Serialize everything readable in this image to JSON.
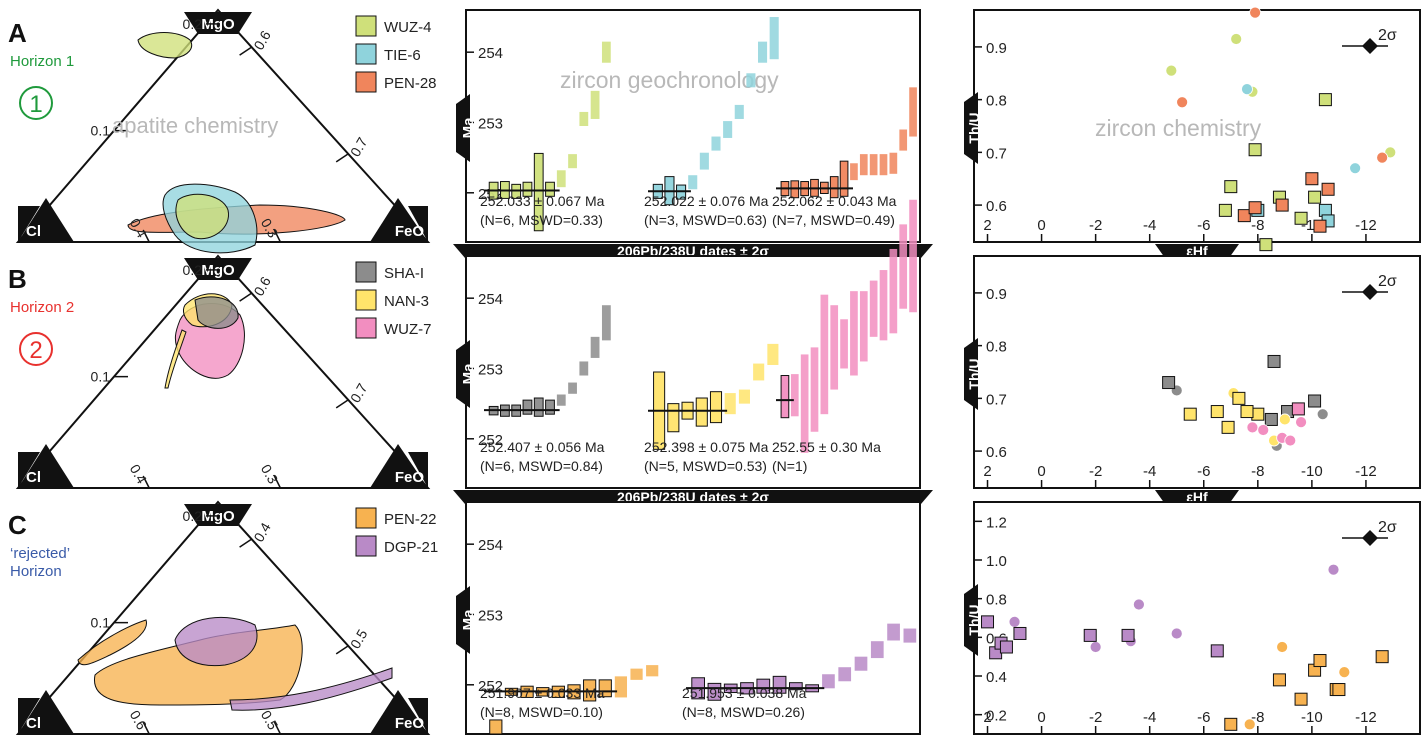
{
  "figure": {
    "rows": [
      {
        "letter": "A",
        "horizon_lines": [
          "Horizon 1"
        ],
        "horizon_color": "#1f9a3c",
        "circle_numeral": "1",
        "ternary": {
          "apex_labels": {
            "top": "MgO",
            "left": "Cl",
            "right": "FeO"
          },
          "left_edge_ticks": [
            "0.2",
            "0.1"
          ],
          "bottom_edge_ticks": [
            "0.4",
            "0.3"
          ],
          "right_edge_ticks": [
            "0.6",
            "0.7"
          ],
          "watermark": "apatite chemistry"
        },
        "legend": [
          {
            "label": "WUZ-4",
            "color": "#cfe07a"
          },
          {
            "label": "TIE-6",
            "color": "#8fd3dc"
          },
          {
            "label": "PEN-28",
            "color": "#f0855c"
          }
        ],
        "geochron_watermark": "zircon geochronology",
        "chem_watermark": "zircon chemistry",
        "geochron_xlabel": "206Pb/238U dates ± 2σ",
        "chem_xlabel": "εHf"
      },
      {
        "letter": "B",
        "horizon_lines": [
          "Horizon 2"
        ],
        "horizon_color": "#e8312e",
        "circle_numeral": "2",
        "ternary": {
          "apex_labels": {
            "top": "MgO",
            "left": "Cl",
            "right": "FeO"
          },
          "left_edge_ticks": [
            "0.2",
            "0.1"
          ],
          "bottom_edge_ticks": [
            "0.4",
            "0.3"
          ],
          "right_edge_ticks": [
            "0.6",
            "0.7"
          ],
          "watermark": ""
        },
        "legend": [
          {
            "label": "SHA-I",
            "color": "#8c8c8c"
          },
          {
            "label": "NAN-3",
            "color": "#ffe46b"
          },
          {
            "label": "WUZ-7",
            "color": "#f28ec0"
          }
        ],
        "geochron_watermark": "",
        "chem_watermark": "",
        "geochron_xlabel": "206Pb/238U dates ± 2σ",
        "chem_xlabel": "εHf"
      },
      {
        "letter": "C",
        "horizon_lines": [
          "‘rejected’",
          "Horizon"
        ],
        "horizon_color": "#3a5ba8",
        "circle_numeral": "",
        "ternary": {
          "apex_labels": {
            "top": "MgO",
            "left": "Cl",
            "right": "FeO"
          },
          "left_edge_ticks": [
            "0.2",
            "0.1"
          ],
          "bottom_edge_ticks": [
            "0.6",
            "0.5"
          ],
          "right_edge_ticks": [
            "0.4",
            "0.5"
          ],
          "watermark": ""
        },
        "legend": [
          {
            "label": "PEN-22",
            "color": "#f7b250"
          },
          {
            "label": "DGP-21",
            "color": "#b98ac7"
          }
        ],
        "geochron_watermark": "",
        "chem_watermark": "",
        "geochron_xlabel": "",
        "chem_xlabel": ""
      }
    ]
  },
  "chart_data": [
    {
      "type": "bar",
      "panel": "A-geochronology",
      "ylabel": "Ma",
      "yticks": [
        "254",
        "253",
        "252"
      ],
      "ylim": [
        251.3,
        254.6
      ],
      "xlabel": "206Pb/238U dates ± 2σ",
      "groups": [
        {
          "sample": "WUZ-4",
          "color": "#cfe07a",
          "dates": [
            252.03,
            252.04,
            252.02,
            252.05,
            252.01,
            252.05,
            252.2,
            252.45,
            253.05,
            253.25,
            254.0
          ],
          "errors": [
            0.12,
            0.12,
            0.1,
            0.1,
            0.55,
            0.1,
            0.12,
            0.1,
            0.1,
            0.2,
            0.15
          ],
          "used_count": 6,
          "weighted_mean": 252.033,
          "result_lines": [
            "252.033 ± 0.067 Ma",
            "(N=6, MSWD=0.33)"
          ]
        },
        {
          "sample": "TIE-6",
          "color": "#8fd3dc",
          "dates": [
            252.02,
            252.03,
            252.01,
            252.15,
            252.45,
            252.7,
            252.9,
            253.15,
            253.6,
            254.0,
            254.2
          ],
          "errors": [
            0.1,
            0.2,
            0.1,
            0.1,
            0.12,
            0.1,
            0.12,
            0.1,
            0.1,
            0.15,
            0.3
          ],
          "used_count": 3,
          "weighted_mean": 252.022,
          "result_lines": [
            "252.022 ± 0.076 Ma",
            "(N=3, MSWD=0.63)"
          ]
        },
        {
          "sample": "PEN-28",
          "color": "#f0855c",
          "dates": [
            252.06,
            252.05,
            252.06,
            252.07,
            252.07,
            252.08,
            252.2,
            252.3,
            252.4,
            252.4,
            252.4,
            252.42,
            252.75,
            253.15
          ],
          "errors": [
            0.1,
            0.12,
            0.1,
            0.12,
            0.08,
            0.15,
            0.25,
            0.12,
            0.15,
            0.15,
            0.15,
            0.15,
            0.15,
            0.35
          ],
          "used_count": 7,
          "weighted_mean": 252.062,
          "result_lines": [
            "252.062 ± 0.043 Ma",
            "(N=7, MSWD=0.49)"
          ]
        }
      ]
    },
    {
      "type": "bar",
      "panel": "B-geochronology",
      "ylabel": "Ma",
      "yticks": [
        "254",
        "253",
        "252"
      ],
      "ylim": [
        251.3,
        254.6
      ],
      "xlabel": "206Pb/238U dates ± 2σ",
      "groups": [
        {
          "sample": "SHA-I",
          "color": "#8c8c8c",
          "dates": [
            252.4,
            252.4,
            252.4,
            252.45,
            252.45,
            252.45,
            252.55,
            252.72,
            253.0,
            253.3,
            253.65
          ],
          "errors": [
            0.06,
            0.08,
            0.08,
            0.1,
            0.13,
            0.1,
            0.08,
            0.08,
            0.1,
            0.15,
            0.25
          ],
          "used_count": 6,
          "weighted_mean": 252.407,
          "result_lines": [
            "252.407 ± 0.056 Ma",
            "(N=6, MSWD=0.84)"
          ]
        },
        {
          "sample": "NAN-3",
          "color": "#ffe46b",
          "dates": [
            252.4,
            252.3,
            252.4,
            252.38,
            252.45,
            252.5,
            252.6,
            252.95,
            253.2
          ],
          "errors": [
            0.55,
            0.2,
            0.12,
            0.2,
            0.22,
            0.15,
            0.1,
            0.12,
            0.15
          ],
          "used_count": 5,
          "weighted_mean": 252.398,
          "result_lines": [
            "252.398 ± 0.075 Ma",
            "(N=5, MSWD=0.53)"
          ]
        },
        {
          "sample": "WUZ-7",
          "color": "#f28ec0",
          "dates": [
            252.6,
            252.62,
            252.5,
            252.7,
            253.2,
            253.3,
            253.35,
            253.5,
            253.6,
            253.85,
            253.9,
            254.1,
            254.45,
            254.6
          ],
          "errors": [
            0.3,
            0.3,
            0.7,
            0.6,
            0.85,
            0.6,
            0.35,
            0.6,
            0.5,
            0.4,
            0.5,
            0.6,
            0.6,
            0.8
          ],
          "used_count": 1,
          "weighted_mean": 252.55,
          "result_lines": [
            "252.55 ± 0.30 Ma",
            "(N=1)"
          ]
        }
      ]
    },
    {
      "type": "bar",
      "panel": "C-geochronology",
      "ylabel": "Ma",
      "yticks": [
        "254",
        "253",
        "252"
      ],
      "ylim": [
        251.3,
        254.6
      ],
      "xlabel": "",
      "groups": [
        {
          "sample": "PEN-22",
          "color": "#f7b250",
          "dates": [
            251.4,
            251.9,
            251.9,
            251.9,
            251.9,
            251.9,
            251.92,
            251.95,
            251.97,
            252.15,
            252.2
          ],
          "errors": [
            0.1,
            0.05,
            0.08,
            0.06,
            0.08,
            0.1,
            0.15,
            0.12,
            0.15,
            0.08,
            0.08
          ],
          "used_count": 8,
          "weighted_mean": 251.907,
          "result_lines": [
            "251.907 ± 0.033 Ma",
            "(N=8, MSWD=0.10)"
          ]
        },
        {
          "sample": "DGP-21",
          "color": "#b98ac7",
          "dates": [
            251.95,
            251.9,
            251.95,
            251.95,
            251.98,
            252.0,
            251.98,
            251.95,
            252.05,
            252.15,
            252.3,
            252.5,
            252.75,
            252.7
          ],
          "errors": [
            0.15,
            0.12,
            0.06,
            0.08,
            0.1,
            0.12,
            0.05,
            0.05,
            0.1,
            0.1,
            0.1,
            0.12,
            0.12,
            0.1
          ],
          "used_count": 8,
          "weighted_mean": 251.953,
          "result_lines": [
            "251.953 ± 0.038 Ma",
            "(N=8, MSWD=0.26)"
          ]
        }
      ]
    },
    {
      "type": "scatter",
      "panel": "A-chemistry",
      "xlabel": "εHf",
      "ylabel": "Th/U",
      "xticks": [
        "2",
        "0",
        "-2",
        "-4",
        "-6",
        "-8",
        "-10",
        "-12"
      ],
      "yticks": [
        "0.9",
        "0.8",
        "0.7",
        "0.6"
      ],
      "xlim": [
        2.5,
        -14
      ],
      "ylim": [
        0.53,
        0.97
      ],
      "error_label": "2σ",
      "series": [
        {
          "name": "WUZ-4",
          "color": "#cfe07a",
          "circles": [
            [
              -4.8,
              0.855
            ],
            [
              -7.2,
              0.915
            ],
            [
              -7.8,
              0.815
            ],
            [
              -12.9,
              0.7
            ]
          ],
          "squares": [
            [
              -7.0,
              0.635
            ],
            [
              -6.8,
              0.59
            ],
            [
              -7.9,
              0.705
            ],
            [
              -8.8,
              0.615
            ],
            [
              -9.6,
              0.575
            ],
            [
              -10.1,
              0.615
            ],
            [
              -10.5,
              0.8
            ],
            [
              -8.3,
              0.525
            ]
          ]
        },
        {
          "name": "TIE-6",
          "color": "#8fd3dc",
          "circles": [
            [
              -7.6,
              0.82
            ],
            [
              -11.6,
              0.67
            ]
          ],
          "squares": [
            [
              -8.0,
              0.59
            ],
            [
              -10.5,
              0.59
            ],
            [
              -10.6,
              0.57
            ]
          ]
        },
        {
          "name": "PEN-28",
          "color": "#f0855c",
          "circles": [
            [
              -5.2,
              0.795
            ],
            [
              -7.9,
              0.965
            ],
            [
              -12.6,
              0.69
            ]
          ],
          "squares": [
            [
              -7.5,
              0.58
            ],
            [
              -7.9,
              0.595
            ],
            [
              -8.9,
              0.6
            ],
            [
              -10.0,
              0.65
            ],
            [
              -10.6,
              0.63
            ],
            [
              -10.3,
              0.56
            ]
          ]
        }
      ]
    },
    {
      "type": "scatter",
      "panel": "B-chemistry",
      "xlabel": "εHf",
      "ylabel": "Th/U",
      "xticks": [
        "2",
        "0",
        "-2",
        "-4",
        "-6",
        "-8",
        "-10",
        "-12"
      ],
      "yticks": [
        "0.9",
        "0.8",
        "0.7",
        "0.6"
      ],
      "xlim": [
        2.5,
        -14
      ],
      "ylim": [
        0.53,
        0.97
      ],
      "error_label": "2σ",
      "series": [
        {
          "name": "SHA-I",
          "color": "#8c8c8c",
          "circles": [
            [
              -5.0,
              0.715
            ],
            [
              -8.7,
              0.61
            ],
            [
              -10.4,
              0.67
            ]
          ],
          "squares": [
            [
              -4.7,
              0.73
            ],
            [
              -8.6,
              0.77
            ],
            [
              -8.5,
              0.66
            ],
            [
              -9.1,
              0.675
            ],
            [
              -10.1,
              0.695
            ]
          ]
        },
        {
          "name": "NAN-3",
          "color": "#ffe46b",
          "circles": [
            [
              -7.1,
              0.71
            ],
            [
              -8.6,
              0.62
            ],
            [
              -9.0,
              0.66
            ]
          ],
          "squares": [
            [
              -5.5,
              0.67
            ],
            [
              -6.5,
              0.675
            ],
            [
              -6.9,
              0.645
            ],
            [
              -7.3,
              0.7
            ],
            [
              -8.0,
              0.67
            ],
            [
              -7.6,
              0.675
            ]
          ]
        },
        {
          "name": "WUZ-7",
          "color": "#f28ec0",
          "circles": [
            [
              -7.8,
              0.645
            ],
            [
              -8.2,
              0.64
            ],
            [
              -8.9,
              0.625
            ],
            [
              -9.2,
              0.62
            ],
            [
              -9.6,
              0.655
            ]
          ],
          "squares": [
            [
              -9.5,
              0.68
            ]
          ]
        }
      ]
    },
    {
      "type": "scatter",
      "panel": "C-chemistry",
      "xlabel": "",
      "ylabel": "Th/U",
      "xticks": [
        "2",
        "0",
        "-2",
        "-4",
        "-6",
        "-8",
        "-10",
        "-12"
      ],
      "yticks": [
        "1.2",
        "1.0",
        "0.8",
        "0.6",
        "0.4",
        "0.2"
      ],
      "xlim": [
        2.5,
        -14
      ],
      "ylim": [
        0.1,
        1.3
      ],
      "error_label": "2σ",
      "series": [
        {
          "name": "PEN-22",
          "color": "#f7b250",
          "circles": [
            [
              -7.7,
              0.15
            ],
            [
              -8.9,
              0.55
            ],
            [
              -11.2,
              0.42
            ]
          ],
          "squares": [
            [
              -7.0,
              0.15
            ],
            [
              -8.8,
              0.38
            ],
            [
              -9.6,
              0.28
            ],
            [
              -10.1,
              0.43
            ],
            [
              -10.3,
              0.48
            ],
            [
              -10.9,
              0.33
            ],
            [
              -11.0,
              0.33
            ],
            [
              -12.6,
              0.5
            ]
          ]
        },
        {
          "name": "DGP-21",
          "color": "#b98ac7",
          "circles": [
            [
              1.0,
              0.68
            ],
            [
              -2.0,
              0.55
            ],
            [
              -3.6,
              0.77
            ],
            [
              -3.3,
              0.58
            ],
            [
              -5.0,
              0.62
            ],
            [
              -10.8,
              0.95
            ]
          ],
          "squares": [
            [
              2.0,
              0.68
            ],
            [
              1.7,
              0.52
            ],
            [
              1.5,
              0.57
            ],
            [
              1.3,
              0.55
            ],
            [
              0.8,
              0.62
            ],
            [
              -1.8,
              0.61
            ],
            [
              -3.2,
              0.61
            ],
            [
              -6.5,
              0.53
            ]
          ]
        }
      ]
    }
  ]
}
